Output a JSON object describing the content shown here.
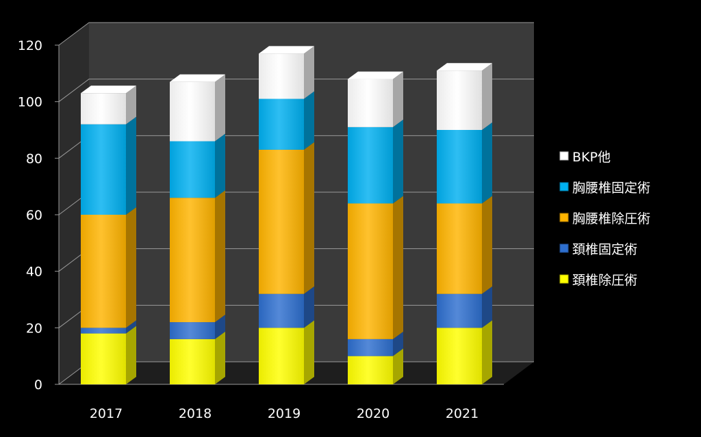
{
  "chart_data": {
    "type": "bar",
    "stacked": true,
    "three_d": true,
    "categories": [
      "2017",
      "2018",
      "2019",
      "2020",
      "2021"
    ],
    "series": [
      {
        "name": "頚椎除圧術",
        "color": "#ffff00",
        "values": [
          18,
          16,
          20,
          10,
          20
        ]
      },
      {
        "name": "頚椎固定術",
        "color": "#2e6fcf",
        "values": [
          2,
          6,
          12,
          6,
          12
        ]
      },
      {
        "name": "胸腰椎除圧術",
        "color": "#ffb400",
        "values": [
          40,
          44,
          51,
          48,
          32
        ]
      },
      {
        "name": "胸腰椎固定術",
        "color": "#00b0f0",
        "values": [
          32,
          20,
          18,
          27,
          26
        ]
      },
      {
        "name": "BKP他",
        "color": "#ffffff",
        "values": [
          11,
          21,
          16,
          17,
          21
        ]
      }
    ],
    "yticks": [
      0,
      20,
      40,
      60,
      80,
      100,
      120
    ],
    "ylim": [
      0,
      120
    ],
    "grid": true,
    "legend_position": "right",
    "legend_order": [
      "BKP他",
      "胸腰椎固定術",
      "胸腰椎除圧術",
      "頚椎固定術",
      "頚椎除圧術"
    ],
    "background_color": "#000000",
    "wall_color": "#3a3a3a"
  }
}
